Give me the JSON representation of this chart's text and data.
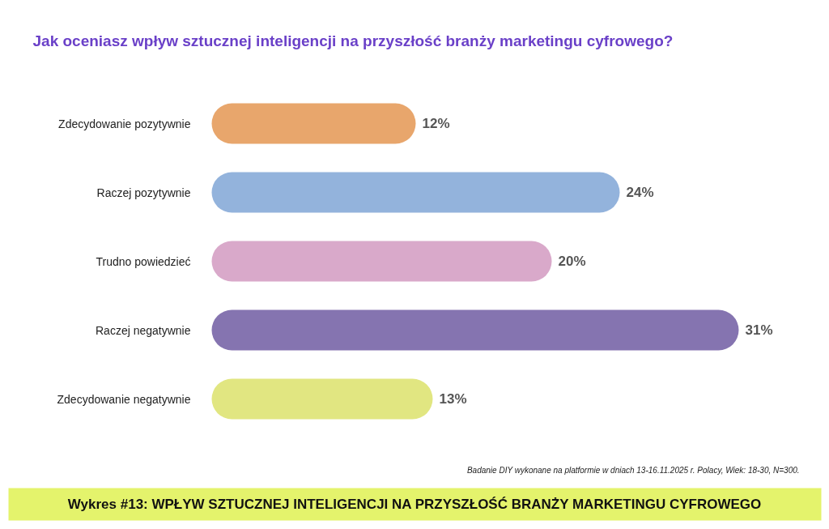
{
  "chart_data": {
    "type": "bar",
    "orientation": "horizontal",
    "title": "Jak oceniasz wpływ sztucznej inteligencji na przyszłość branży marketingu cyfrowego?",
    "categories": [
      "Zdecydowanie pozytywnie",
      "Raczej pozytywnie",
      "Trudno powiedzieć",
      "Raczej negatywnie",
      "Zdecydowanie negatywnie"
    ],
    "values": [
      12,
      24,
      20,
      31,
      13
    ],
    "colors": [
      "#e8a66c",
      "#93b3dc",
      "#d9a9ca",
      "#8574b0",
      "#e1e681"
    ],
    "value_labels": [
      "12%",
      "24%",
      "20%",
      "31%",
      "13%"
    ],
    "annotations": [
      "Badanie DIY wykonane na platformie w dniach 13-16.11.2025 r.  Polacy, Wiek: 18-30, N=300.",
      "Wykres #13: WPŁYW SZTUCZNEJ INTELIGENCJI NA PRZYSZŁOŚĆ BRANŻY MARKETINGU CYFROWEGO"
    ]
  }
}
